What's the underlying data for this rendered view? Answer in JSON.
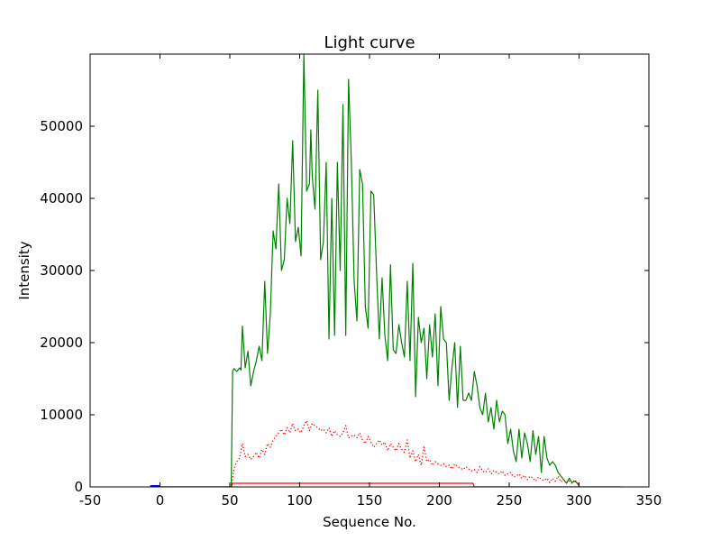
{
  "chart_data": {
    "type": "line",
    "title": "Light curve",
    "xlabel": "Sequence No.",
    "ylabel": "Intensity",
    "xlim": [
      -50,
      350
    ],
    "ylim": [
      0,
      60000
    ],
    "xticks": [
      -50,
      0,
      50,
      100,
      150,
      200,
      250,
      300,
      350
    ],
    "yticks": [
      0,
      10000,
      20000,
      30000,
      40000,
      50000
    ],
    "grid": false,
    "legend": "none",
    "colors": {
      "green": "#008000",
      "red": "#ff0000",
      "blue": "#0000ff"
    },
    "series": [
      {
        "style": "solid",
        "color": "#008000",
        "x": [
          -5,
          51,
          52,
          53,
          55,
          57,
          58,
          59,
          61,
          63,
          65,
          67,
          69,
          71,
          73,
          75,
          77,
          79,
          81,
          83,
          85,
          87,
          89,
          91,
          93,
          95,
          97,
          99,
          101,
          103,
          105,
          107,
          108,
          109,
          111,
          113,
          115,
          117,
          119,
          121,
          123,
          125,
          127,
          129,
          131,
          133,
          135,
          137,
          139,
          141,
          143,
          145,
          147,
          149,
          151,
          153,
          155,
          157,
          159,
          161,
          163,
          165,
          167,
          169,
          171,
          173,
          175,
          177,
          179,
          181,
          183,
          185,
          187,
          189,
          191,
          193,
          195,
          197,
          199,
          201,
          203,
          205,
          207,
          209,
          211,
          213,
          215,
          217,
          219,
          221,
          223,
          225,
          227,
          229,
          231,
          233,
          235,
          237,
          239,
          241,
          243,
          245,
          247,
          249,
          251,
          253,
          255,
          257,
          259,
          261,
          263,
          265,
          267,
          269,
          271,
          273,
          275,
          277,
          279,
          281,
          283,
          285,
          287,
          289,
          291,
          293,
          295,
          297,
          299,
          300
        ],
        "y": [
          0,
          0,
          16000,
          16400,
          16000,
          16500,
          16200,
          22300,
          16500,
          18800,
          14000,
          16000,
          17500,
          19500,
          17500,
          28500,
          18500,
          24000,
          35500,
          33000,
          42000,
          30000,
          31500,
          40000,
          36500,
          48000,
          34000,
          36000,
          32000,
          60000,
          41000,
          42000,
          49500,
          43000,
          38500,
          55000,
          31500,
          34000,
          45000,
          20500,
          40000,
          21000,
          45000,
          30000,
          53000,
          21000,
          56500,
          45000,
          28500,
          23000,
          44000,
          42000,
          25000,
          22000,
          41000,
          40500,
          30000,
          20500,
          29000,
          21000,
          17500,
          30800,
          19000,
          18500,
          22500,
          20000,
          18000,
          28500,
          17500,
          31000,
          12500,
          23500,
          20000,
          22000,
          15000,
          22500,
          18000,
          24000,
          14000,
          25000,
          20500,
          20000,
          12000,
          16500,
          20000,
          11000,
          19500,
          12000,
          12000,
          13000,
          12000,
          16000,
          14000,
          11000,
          10000,
          13000,
          9000,
          11000,
          8000,
          12000,
          9000,
          10500,
          10000,
          6000,
          8000,
          5000,
          3500,
          8000,
          4000,
          7500,
          6000,
          3500,
          7800,
          4500,
          7000,
          2000,
          7000,
          4000,
          3000,
          3500,
          3000,
          2000,
          1500,
          1000,
          500,
          1200,
          600,
          800,
          500,
          100
        ],
        "note": ""
      },
      {
        "style": "dotted",
        "color": "#ff0000",
        "x": [
          51,
          53,
          55,
          57,
          59,
          61,
          63,
          65,
          67,
          69,
          71,
          73,
          75,
          77,
          79,
          81,
          83,
          85,
          87,
          89,
          91,
          93,
          95,
          97,
          99,
          101,
          103,
          105,
          107,
          109,
          111,
          113,
          115,
          117,
          119,
          121,
          123,
          125,
          127,
          129,
          131,
          133,
          135,
          137,
          139,
          141,
          143,
          145,
          147,
          149,
          151,
          153,
          155,
          157,
          159,
          161,
          163,
          165,
          167,
          169,
          171,
          173,
          175,
          177,
          179,
          181,
          183,
          185,
          187,
          189,
          191,
          193,
          195,
          197,
          199,
          201,
          203,
          205,
          207,
          209,
          211,
          213,
          215,
          217,
          219,
          221,
          223,
          225,
          227,
          229,
          231,
          233,
          235,
          237,
          239,
          241,
          243,
          245,
          247,
          249,
          251,
          253,
          255,
          257,
          259,
          261,
          263,
          265,
          267,
          269,
          271,
          273,
          275,
          277,
          279,
          281,
          283,
          285,
          287,
          289,
          291,
          293,
          295,
          297,
          299,
          300
        ],
        "y": [
          0,
          2500,
          3500,
          4000,
          6000,
          4200,
          4500,
          3800,
          4200,
          4800,
          4000,
          5200,
          4500,
          6000,
          5500,
          6500,
          7000,
          7500,
          8000,
          7200,
          8200,
          7500,
          8800,
          7800,
          8000,
          7500,
          8500,
          9200,
          7800,
          8800,
          8500,
          8200,
          7800,
          8000,
          7500,
          8200,
          7000,
          7800,
          7200,
          7000,
          7500,
          8500,
          6800,
          7000,
          7200,
          6800,
          7500,
          6500,
          6000,
          7000,
          6200,
          5500,
          6000,
          6500,
          5800,
          6200,
          5000,
          6000,
          5500,
          5000,
          6000,
          5200,
          4800,
          6500,
          4000,
          5000,
          3500,
          4500,
          3000,
          5500,
          3500,
          3800,
          3000,
          3500,
          3200,
          3000,
          3200,
          2800,
          3000,
          2500,
          3200,
          2800,
          2600,
          2400,
          2800,
          2500,
          2200,
          2400,
          2000,
          2800,
          2200,
          2000,
          2500,
          1800,
          2300,
          2000,
          1800,
          2200,
          1600,
          1800,
          2000,
          1400,
          1500,
          1800,
          1200,
          1600,
          1000,
          1500,
          1200,
          800,
          1400,
          1000,
          900,
          1200,
          600,
          1200,
          800,
          1500,
          700,
          1000,
          600,
          800,
          500,
          1000,
          400,
          200
        ],
        "note": ""
      },
      {
        "style": "solid",
        "color": "#ff0000",
        "x": [
          0,
          51,
          52,
          224,
          225,
          330
        ],
        "y": [
          0,
          0,
          500,
          500,
          0,
          0
        ]
      },
      {
        "style": "marker",
        "color": "#0000ff",
        "x": [
          -6,
          -5,
          -4,
          -3,
          -2,
          -1
        ],
        "y": [
          0,
          0,
          0,
          0,
          0,
          0
        ]
      }
    ]
  }
}
